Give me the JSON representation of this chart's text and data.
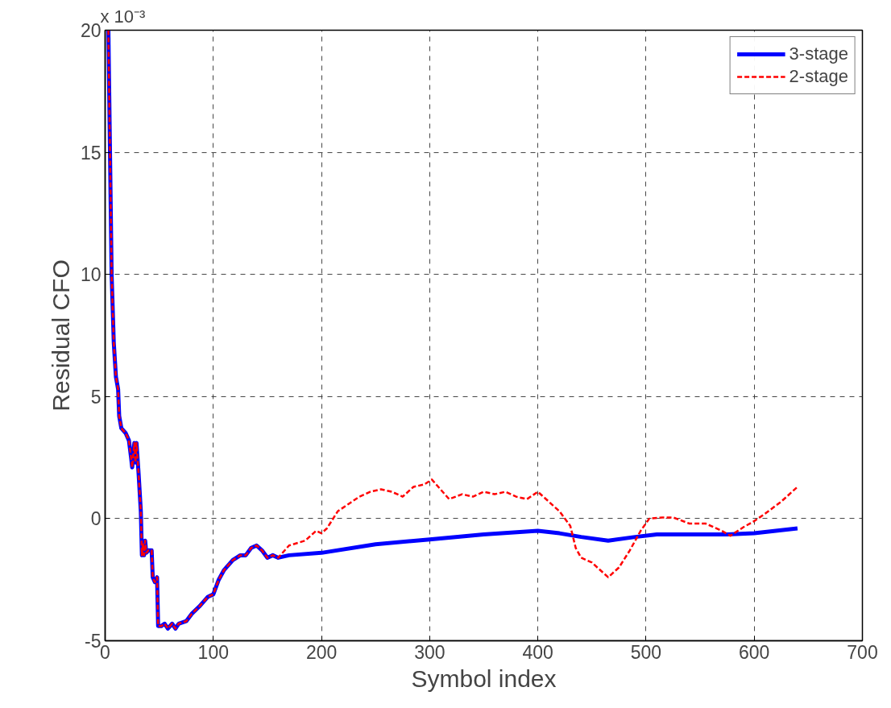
{
  "chart_data": {
    "type": "line",
    "xlabel": "Symbol index",
    "ylabel": "Residual CFO",
    "annotations": [
      "x 10⁻³"
    ],
    "xlim": [
      0,
      700
    ],
    "xticks": [
      0,
      100,
      200,
      300,
      400,
      500,
      600,
      700
    ],
    "ylim": [
      -5,
      20
    ],
    "yticks": [
      -5,
      0,
      5,
      10,
      15,
      20
    ],
    "grid": true,
    "legend": "top right",
    "series": [
      {
        "name": "3-stage",
        "color": "#0000ff",
        "line_style": "solid",
        "x": [
          3,
          6,
          8,
          10,
          12,
          13,
          15,
          19,
          22,
          24,
          25,
          27,
          28,
          29,
          31,
          33,
          34,
          35,
          36,
          37,
          38,
          40,
          43,
          44,
          46,
          48,
          49,
          52,
          55,
          58,
          62,
          65,
          68,
          75,
          80,
          87,
          95,
          100,
          105,
          110,
          118,
          125,
          130,
          135,
          140,
          145,
          150,
          155,
          160,
          170,
          200,
          250,
          300,
          350,
          400,
          420,
          440,
          465,
          490,
          510,
          575,
          600,
          620,
          640
        ],
        "values": [
          20,
          10,
          7.2,
          5.8,
          5.3,
          4.2,
          3.7,
          3.5,
          3.2,
          2.5,
          2.1,
          3.1,
          2.3,
          3.1,
          1.8,
          0.3,
          -1.5,
          -1.0,
          -1.5,
          -0.9,
          -1.4,
          -1.3,
          -1.3,
          -2.4,
          -2.6,
          -2.4,
          -4.4,
          -4.4,
          -4.3,
          -4.5,
          -4.3,
          -4.5,
          -4.3,
          -4.2,
          -3.9,
          -3.6,
          -3.2,
          -3.1,
          -2.5,
          -2.1,
          -1.7,
          -1.5,
          -1.5,
          -1.2,
          -1.1,
          -1.3,
          -1.6,
          -1.5,
          -1.6,
          -1.5,
          -1.4,
          -1.05,
          -0.85,
          -0.65,
          -0.5,
          -0.6,
          -0.75,
          -0.9,
          -0.75,
          -0.65,
          -0.65,
          -0.6,
          -0.5,
          -0.4
        ]
      },
      {
        "name": "2-stage",
        "color": "#ff0000",
        "line_style": "dashed",
        "x": [
          3,
          6,
          8,
          10,
          12,
          13,
          15,
          19,
          22,
          24,
          25,
          27,
          28,
          29,
          31,
          33,
          34,
          35,
          36,
          37,
          38,
          40,
          43,
          44,
          46,
          48,
          49,
          52,
          55,
          58,
          62,
          65,
          68,
          75,
          80,
          87,
          95,
          100,
          105,
          110,
          118,
          125,
          130,
          135,
          140,
          145,
          150,
          155,
          160,
          170,
          185,
          195,
          200,
          205,
          215,
          225,
          235,
          245,
          255,
          265,
          275,
          285,
          295,
          302,
          310,
          318,
          330,
          340,
          350,
          360,
          370,
          380,
          390,
          400,
          410,
          420,
          430,
          435,
          440,
          450,
          465,
          475,
          485,
          495,
          503,
          515,
          525,
          540,
          555,
          570,
          578,
          590,
          600,
          610,
          625,
          640
        ],
        "values": [
          20,
          10,
          7.2,
          5.8,
          5.3,
          4.2,
          3.7,
          3.5,
          3.2,
          2.5,
          2.1,
          3.1,
          2.3,
          3.1,
          1.8,
          0.3,
          -1.5,
          -1.0,
          -1.5,
          -0.9,
          -1.4,
          -1.3,
          -1.3,
          -2.4,
          -2.6,
          -2.4,
          -4.4,
          -4.4,
          -4.3,
          -4.5,
          -4.3,
          -4.5,
          -4.3,
          -4.2,
          -3.9,
          -3.6,
          -3.2,
          -3.1,
          -2.5,
          -2.1,
          -1.7,
          -1.5,
          -1.5,
          -1.2,
          -1.1,
          -1.3,
          -1.6,
          -1.5,
          -1.6,
          -1.1,
          -0.9,
          -0.5,
          -0.6,
          -0.4,
          0.3,
          0.6,
          0.9,
          1.1,
          1.2,
          1.1,
          0.9,
          1.3,
          1.4,
          1.6,
          1.2,
          0.8,
          1.0,
          0.9,
          1.1,
          1.0,
          1.1,
          0.9,
          0.8,
          1.1,
          0.7,
          0.3,
          -0.3,
          -1.2,
          -1.6,
          -1.8,
          -2.4,
          -2.0,
          -1.3,
          -0.5,
          0.0,
          0.05,
          0.05,
          -0.2,
          -0.2,
          -0.5,
          -0.7,
          -0.35,
          -0.1,
          0.2,
          0.7,
          1.3
        ]
      }
    ]
  }
}
